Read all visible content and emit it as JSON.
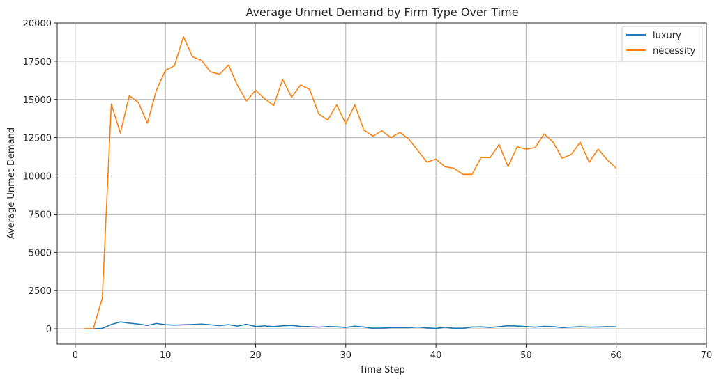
{
  "chart_data": {
    "type": "line",
    "title": "Average Unmet Demand by Firm Type Over Time",
    "xlabel": "Time Step",
    "ylabel": "Average Unmet Demand",
    "xlim": [
      -2,
      70
    ],
    "ylim": [
      -1000,
      20000
    ],
    "xticks": [
      0,
      10,
      20,
      30,
      40,
      50,
      60,
      70
    ],
    "yticks": [
      0,
      2500,
      5000,
      7500,
      10000,
      12500,
      15000,
      17500,
      20000
    ],
    "grid": true,
    "legend_position": "top-right",
    "x": [
      1,
      2,
      3,
      4,
      5,
      6,
      7,
      8,
      9,
      10,
      11,
      12,
      13,
      14,
      15,
      16,
      17,
      18,
      19,
      20,
      21,
      22,
      23,
      24,
      25,
      26,
      27,
      28,
      29,
      30,
      31,
      32,
      33,
      34,
      35,
      36,
      37,
      38,
      39,
      40,
      41,
      42,
      43,
      44,
      45,
      46,
      47,
      48,
      49,
      50,
      51,
      52,
      53,
      54,
      55,
      56,
      57,
      58,
      59,
      60
    ],
    "series": [
      {
        "name": "luxury",
        "color": "#1f77b4",
        "values": [
          0,
          0,
          30,
          280,
          450,
          370,
          310,
          220,
          350,
          270,
          240,
          260,
          280,
          310,
          260,
          210,
          270,
          180,
          290,
          150,
          190,
          140,
          200,
          220,
          160,
          140,
          110,
          150,
          130,
          90,
          170,
          120,
          40,
          50,
          80,
          80,
          80,
          110,
          60,
          30,
          100,
          40,
          40,
          120,
          130,
          90,
          140,
          200,
          180,
          150,
          110,
          160,
          140,
          80,
          110,
          140,
          110,
          120,
          140,
          130
        ]
      },
      {
        "name": "necessity",
        "color": "#ff7f0e",
        "values": [
          0,
          0,
          2000,
          14700,
          12800,
          15250,
          14800,
          13450,
          15600,
          16900,
          17200,
          19100,
          17800,
          17550,
          16800,
          16650,
          17250,
          15900,
          14900,
          15600,
          15050,
          14600,
          16300,
          15150,
          15950,
          15650,
          14050,
          13650,
          14650,
          13400,
          14650,
          13000,
          12600,
          12950,
          12500,
          12850,
          12400,
          11650,
          10900,
          11100,
          10600,
          10500,
          10100,
          10100,
          11200,
          11200,
          12050,
          10600,
          11900,
          11750,
          11850,
          12750,
          12200,
          11150,
          11400,
          12200,
          10900,
          11750,
          11050,
          10500
        ]
      }
    ]
  }
}
